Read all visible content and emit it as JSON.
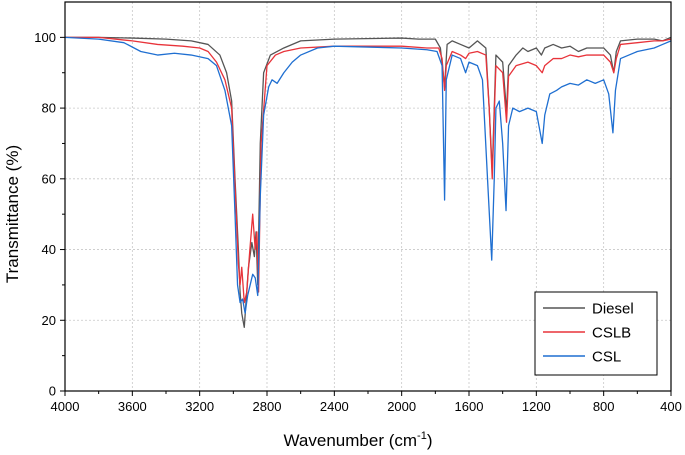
{
  "chart_data": {
    "type": "line",
    "xlabel_main": "Wavenumber (cm",
    "xlabel_sup": "-1",
    "xlabel_close": ")",
    "ylabel": "Transmittance (%)",
    "xlim": [
      4000,
      400
    ],
    "ylim": [
      0,
      110
    ],
    "x_ticks": [
      4000,
      3600,
      3200,
      2800,
      2400,
      2000,
      1600,
      1200,
      800,
      400
    ],
    "y_ticks": [
      0,
      20,
      40,
      60,
      80,
      100
    ],
    "grid": true,
    "legend_position": "bottom-right",
    "series": [
      {
        "name": "Diesel",
        "color": "#555555",
        "points": [
          [
            4000,
            100
          ],
          [
            3800,
            100
          ],
          [
            3600,
            99.8
          ],
          [
            3400,
            99.5
          ],
          [
            3250,
            99
          ],
          [
            3150,
            98
          ],
          [
            3080,
            95
          ],
          [
            3040,
            90
          ],
          [
            3010,
            82
          ],
          [
            2990,
            60
          ],
          [
            2970,
            40
          ],
          [
            2960,
            28
          ],
          [
            2950,
            22
          ],
          [
            2935,
            18
          ],
          [
            2925,
            25
          ],
          [
            2910,
            35
          ],
          [
            2890,
            42
          ],
          [
            2875,
            38
          ],
          [
            2865,
            45
          ],
          [
            2855,
            30
          ],
          [
            2840,
            70
          ],
          [
            2820,
            90
          ],
          [
            2780,
            95
          ],
          [
            2700,
            97
          ],
          [
            2600,
            99
          ],
          [
            2400,
            99.5
          ],
          [
            2000,
            99.8
          ],
          [
            1900,
            99.5
          ],
          [
            1800,
            99.5
          ],
          [
            1770,
            97
          ],
          [
            1745,
            86
          ],
          [
            1730,
            98
          ],
          [
            1700,
            99
          ],
          [
            1650,
            98
          ],
          [
            1600,
            97
          ],
          [
            1550,
            99
          ],
          [
            1500,
            97
          ],
          [
            1480,
            80
          ],
          [
            1462,
            62
          ],
          [
            1450,
            80
          ],
          [
            1440,
            95
          ],
          [
            1400,
            93
          ],
          [
            1377,
            79
          ],
          [
            1365,
            92
          ],
          [
            1320,
            95
          ],
          [
            1280,
            97
          ],
          [
            1250,
            96
          ],
          [
            1200,
            97
          ],
          [
            1170,
            95
          ],
          [
            1150,
            97
          ],
          [
            1100,
            98
          ],
          [
            1050,
            97
          ],
          [
            1000,
            97.5
          ],
          [
            950,
            96
          ],
          [
            900,
            97
          ],
          [
            850,
            97
          ],
          [
            800,
            97
          ],
          [
            760,
            95
          ],
          [
            740,
            90
          ],
          [
            725,
            96
          ],
          [
            700,
            99
          ],
          [
            600,
            99.5
          ],
          [
            500,
            99.5
          ],
          [
            450,
            99
          ],
          [
            400,
            100
          ]
        ]
      },
      {
        "name": "CSLB",
        "color": "#e8333a",
        "points": [
          [
            4000,
            100
          ],
          [
            3800,
            100
          ],
          [
            3600,
            99
          ],
          [
            3450,
            98
          ],
          [
            3300,
            97.5
          ],
          [
            3200,
            97
          ],
          [
            3150,
            96
          ],
          [
            3100,
            93
          ],
          [
            3050,
            88
          ],
          [
            3010,
            80
          ],
          [
            2990,
            58
          ],
          [
            2970,
            36
          ],
          [
            2960,
            30
          ],
          [
            2950,
            35
          ],
          [
            2935,
            25
          ],
          [
            2920,
            28
          ],
          [
            2905,
            38
          ],
          [
            2885,
            50
          ],
          [
            2870,
            40
          ],
          [
            2860,
            45
          ],
          [
            2850,
            28
          ],
          [
            2835,
            70
          ],
          [
            2800,
            92
          ],
          [
            2750,
            95
          ],
          [
            2700,
            96
          ],
          [
            2600,
            97
          ],
          [
            2400,
            97.5
          ],
          [
            2000,
            97.5
          ],
          [
            1850,
            97
          ],
          [
            1780,
            97
          ],
          [
            1760,
            94
          ],
          [
            1745,
            85
          ],
          [
            1735,
            92
          ],
          [
            1700,
            96
          ],
          [
            1650,
            95
          ],
          [
            1620,
            94
          ],
          [
            1600,
            95.5
          ],
          [
            1550,
            96
          ],
          [
            1500,
            95
          ],
          [
            1480,
            80
          ],
          [
            1462,
            60
          ],
          [
            1450,
            78
          ],
          [
            1440,
            92
          ],
          [
            1400,
            90
          ],
          [
            1377,
            76
          ],
          [
            1365,
            89
          ],
          [
            1320,
            92
          ],
          [
            1250,
            93
          ],
          [
            1200,
            92
          ],
          [
            1165,
            90
          ],
          [
            1150,
            92
          ],
          [
            1100,
            94
          ],
          [
            1050,
            94
          ],
          [
            1000,
            95
          ],
          [
            950,
            94.5
          ],
          [
            900,
            95
          ],
          [
            850,
            95
          ],
          [
            800,
            95
          ],
          [
            760,
            93
          ],
          [
            740,
            90
          ],
          [
            725,
            94
          ],
          [
            700,
            98
          ],
          [
            600,
            98.5
          ],
          [
            500,
            99
          ],
          [
            450,
            99
          ],
          [
            400,
            99.5
          ]
        ]
      },
      {
        "name": "CSL",
        "color": "#1f6fd1",
        "points": [
          [
            4000,
            100
          ],
          [
            3800,
            99.5
          ],
          [
            3650,
            98.5
          ],
          [
            3550,
            96
          ],
          [
            3450,
            95
          ],
          [
            3350,
            95.5
          ],
          [
            3250,
            95
          ],
          [
            3150,
            94
          ],
          [
            3100,
            92
          ],
          [
            3050,
            85
          ],
          [
            3010,
            75
          ],
          [
            2990,
            50
          ],
          [
            2975,
            30
          ],
          [
            2960,
            25
          ],
          [
            2945,
            26
          ],
          [
            2930,
            22
          ],
          [
            2915,
            27
          ],
          [
            2900,
            30
          ],
          [
            2885,
            33
          ],
          [
            2870,
            32
          ],
          [
            2855,
            27
          ],
          [
            2840,
            55
          ],
          [
            2820,
            78
          ],
          [
            2790,
            86
          ],
          [
            2770,
            88
          ],
          [
            2740,
            87
          ],
          [
            2700,
            90
          ],
          [
            2650,
            93
          ],
          [
            2600,
            95
          ],
          [
            2500,
            97
          ],
          [
            2400,
            97.5
          ],
          [
            2000,
            97
          ],
          [
            1850,
            96.5
          ],
          [
            1790,
            96
          ],
          [
            1760,
            92
          ],
          [
            1745,
            54
          ],
          [
            1735,
            88
          ],
          [
            1700,
            95
          ],
          [
            1650,
            94
          ],
          [
            1620,
            90
          ],
          [
            1600,
            93
          ],
          [
            1550,
            92
          ],
          [
            1520,
            88
          ],
          [
            1490,
            60
          ],
          [
            1465,
            37
          ],
          [
            1450,
            60
          ],
          [
            1440,
            80
          ],
          [
            1420,
            82
          ],
          [
            1400,
            70
          ],
          [
            1380,
            51
          ],
          [
            1365,
            75
          ],
          [
            1340,
            80
          ],
          [
            1300,
            79
          ],
          [
            1250,
            80
          ],
          [
            1200,
            79
          ],
          [
            1165,
            70
          ],
          [
            1150,
            78
          ],
          [
            1120,
            84
          ],
          [
            1080,
            85
          ],
          [
            1050,
            86
          ],
          [
            1000,
            87
          ],
          [
            950,
            86.5
          ],
          [
            900,
            88
          ],
          [
            850,
            87
          ],
          [
            800,
            88
          ],
          [
            770,
            84
          ],
          [
            745,
            73
          ],
          [
            730,
            85
          ],
          [
            700,
            94
          ],
          [
            600,
            96
          ],
          [
            500,
            97
          ],
          [
            450,
            98
          ],
          [
            400,
            99
          ]
        ]
      }
    ]
  }
}
